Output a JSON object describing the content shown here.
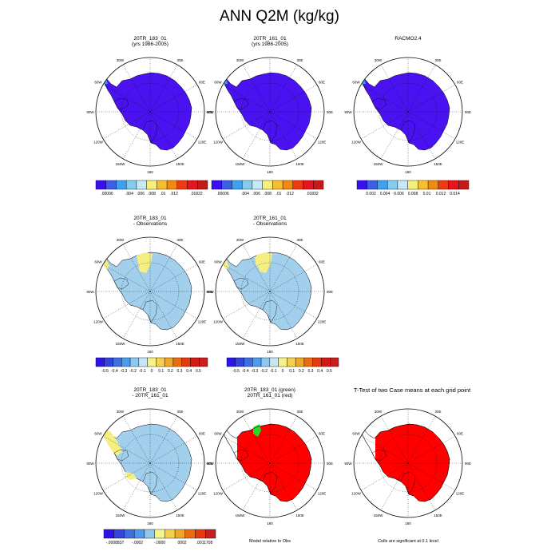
{
  "title": "ANN Q2M (kg/kg)",
  "colors": {
    "abs_scale": [
      "#3a0ff0",
      "#3d5fe6",
      "#3fa0ee",
      "#86ccee",
      "#c7e8f5",
      "#f5f07a",
      "#f5c030",
      "#f08a10",
      "#ee3a10",
      "#e6141e",
      "#c51a1a"
    ],
    "diff_scale": [
      "#2a14e8",
      "#3344d8",
      "#3e6fe0",
      "#4d9aee",
      "#8fc8ec",
      "#c6e6f3",
      "#f5f38a",
      "#f5d050",
      "#f0a626",
      "#ec6c14",
      "#e33a10",
      "#d41a14",
      "#c81e1e"
    ],
    "t_scale": [
      "#2a14e8",
      "#3344d8",
      "#3e6fe0",
      "#4d9aee",
      "#8fc8ec",
      "#f5f38a",
      "#f5d050",
      "#f0a626",
      "#ec6c14",
      "#e33a10",
      "#c81e1e"
    ],
    "land_abs": "#4a12f0",
    "land_diff": "#a2cfec",
    "sig_red": "#ff0000",
    "sig_green": "#22dd22",
    "anom_yellow": "#f5ef83",
    "anom_gold": "#f3d555"
  },
  "chart_data": [
    {
      "type": "heatmap",
      "title": "20TR_183_01",
      "subtitle": "(yrs 1986-2005)",
      "field": "absolute",
      "map_labels": [
        "30W",
        "30E",
        "60W",
        "60E",
        "90W",
        "90E",
        "120W",
        "120E",
        "150W",
        "150E",
        "180"
      ],
      "colorbar_labels": [
        ".00006",
        "",
        ".004",
        ".006",
        ".008",
        ".01",
        ".012",
        "",
        ".01822"
      ]
    },
    {
      "type": "heatmap",
      "title": "20TR_161_01",
      "subtitle": "(yrs 1986-2005)",
      "field": "absolute",
      "map_labels": [
        "30W",
        "30E",
        "60W",
        "60E",
        "90W",
        "90E",
        "120W",
        "120E",
        "150W",
        "150E",
        "180"
      ],
      "colorbar_labels": [
        ".00006",
        "",
        ".004",
        ".006",
        ".008",
        ".01",
        ".012",
        "",
        ".01832"
      ]
    },
    {
      "type": "heatmap",
      "title": "RACMO2.4",
      "subtitle": "",
      "field": "absolute",
      "map_labels": [
        "30W",
        "30E",
        "60W",
        "60E",
        "90W",
        "90E",
        "120W",
        "120E",
        "150W",
        "150E",
        "180"
      ],
      "colorbar_labels": [
        "0.002",
        "0.004",
        "0.006",
        "0.008",
        "0.01",
        "0.012",
        "0.014"
      ]
    },
    {
      "type": "heatmap",
      "title": "20TR_183_01",
      "subtitle": "- Observations",
      "field": "difference",
      "map_labels": [
        "30W",
        "30E",
        "60W",
        "60E",
        "90W",
        "90E",
        "120W",
        "120E",
        "150W",
        "150E",
        "180"
      ],
      "colorbar_labels": [
        "-0.5",
        "-0.4",
        "-0.3",
        "-0.2",
        "-0.1",
        "0",
        "0.1",
        "0.2",
        "0.3",
        "0.4",
        "0.5"
      ]
    },
    {
      "type": "heatmap",
      "title": "20TR_161_01",
      "subtitle": "- Observations",
      "field": "difference",
      "map_labels": [
        "30W",
        "30E",
        "60W",
        "60E",
        "90W",
        "90E",
        "120W",
        "120E",
        "150W",
        "150E",
        "180"
      ],
      "colorbar_labels": [
        "-0.5",
        "-0.4",
        "-0.3",
        "-0.2",
        "-0.1",
        "0",
        "0.1",
        "0.2",
        "0.3",
        "0.4",
        "0.5"
      ]
    },
    {
      "type": "heatmap",
      "title": "20TR_183_01",
      "subtitle": "- 20TR_161_01",
      "field": "case-difference",
      "map_labels": [
        "30W",
        "30E",
        "60W",
        "60E",
        "90W",
        "90E",
        "120W",
        "120E",
        "150W",
        "150E",
        "180"
      ],
      "colorbar_labels": [
        "-.0008837",
        "",
        "-.0002",
        "",
        "-.0000",
        "",
        "0002",
        "",
        ".0011708"
      ]
    },
    {
      "type": "heatmap",
      "title": "20TR_183_01 (green)",
      "subtitle": "20TR_161_01 (red)",
      "field": "model-relative-to-obs",
      "map_labels": [
        "30W",
        "30E",
        "60W",
        "60E",
        "90W",
        "90E",
        "120W",
        "120E",
        "150W",
        "150E",
        "180"
      ],
      "note": "Model relative to Obs"
    },
    {
      "type": "heatmap",
      "title": "T-Test of two Case means at each grid point",
      "subtitle": "",
      "field": "significance",
      "map_labels": [
        "30W",
        "30E",
        "60W",
        "60E",
        "90W",
        "90E",
        "120W",
        "120E",
        "150W",
        "150E",
        "180"
      ],
      "note": "Cells are significant at 0.1 level"
    }
  ]
}
